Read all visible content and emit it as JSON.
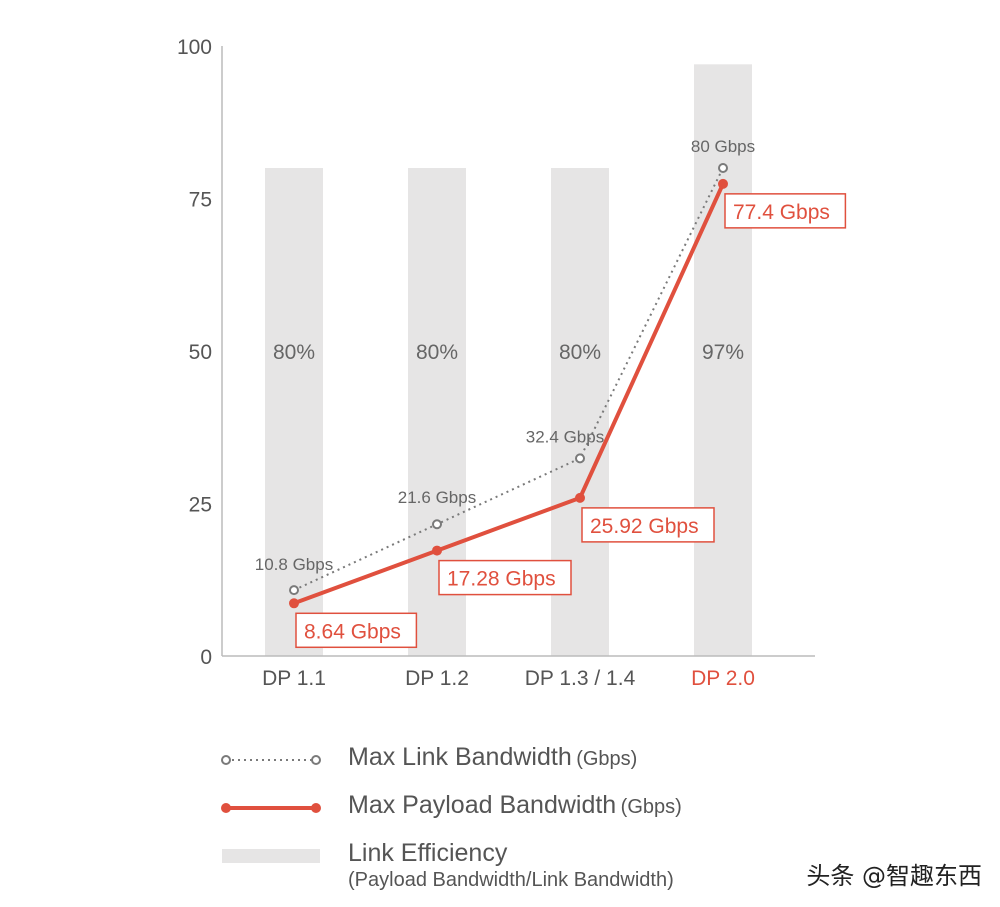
{
  "chart_data": {
    "type": "bar",
    "categories": [
      "DP 1.1",
      "DP 1.2",
      "DP 1.3 / 1.4",
      "DP 2.0"
    ],
    "highlight_category": "DP 2.0",
    "ylim": [
      0,
      100
    ],
    "yticks": [
      0,
      25,
      50,
      75,
      100
    ],
    "bars": {
      "name": "Link Efficiency",
      "values": [
        80,
        80,
        80,
        97
      ],
      "labels": [
        "80%",
        "80%",
        "80%",
        "97%"
      ],
      "color": "#e6e5e5"
    },
    "series": [
      {
        "name": "Max Link Bandwidth",
        "type": "line",
        "style": "dotted",
        "values": [
          10.8,
          21.6,
          32.4,
          80
        ],
        "labels": [
          "10.8 Gbps",
          "21.6 Gbps",
          "32.4 Gbps",
          "80 Gbps"
        ],
        "color": "#7a7a7a"
      },
      {
        "name": "Max Payload Bandwidth",
        "type": "line",
        "style": "solid",
        "values": [
          8.64,
          17.28,
          25.92,
          77.4
        ],
        "labels": [
          "8.64 Gbps",
          "17.28 Gbps",
          "25.92 Gbps",
          "77.4 Gbps"
        ],
        "color": "#e0503e"
      }
    ],
    "axis_color": "#bbbbbb",
    "tick_label_color": "#555555",
    "highlight_color": "#e0503e",
    "grid": false,
    "legend_position": "bottom"
  },
  "legend": {
    "link_bandwidth": {
      "label": "Max Link Bandwidth",
      "unit": "(Gbps)"
    },
    "payload_bandwidth": {
      "label": "Max Payload Bandwidth",
      "unit": "(Gbps)"
    },
    "efficiency": {
      "label": "Link Efficiency",
      "sublabel": "(Payload Bandwidth/Link Bandwidth)"
    }
  },
  "watermark": "头条 @智趣东西"
}
